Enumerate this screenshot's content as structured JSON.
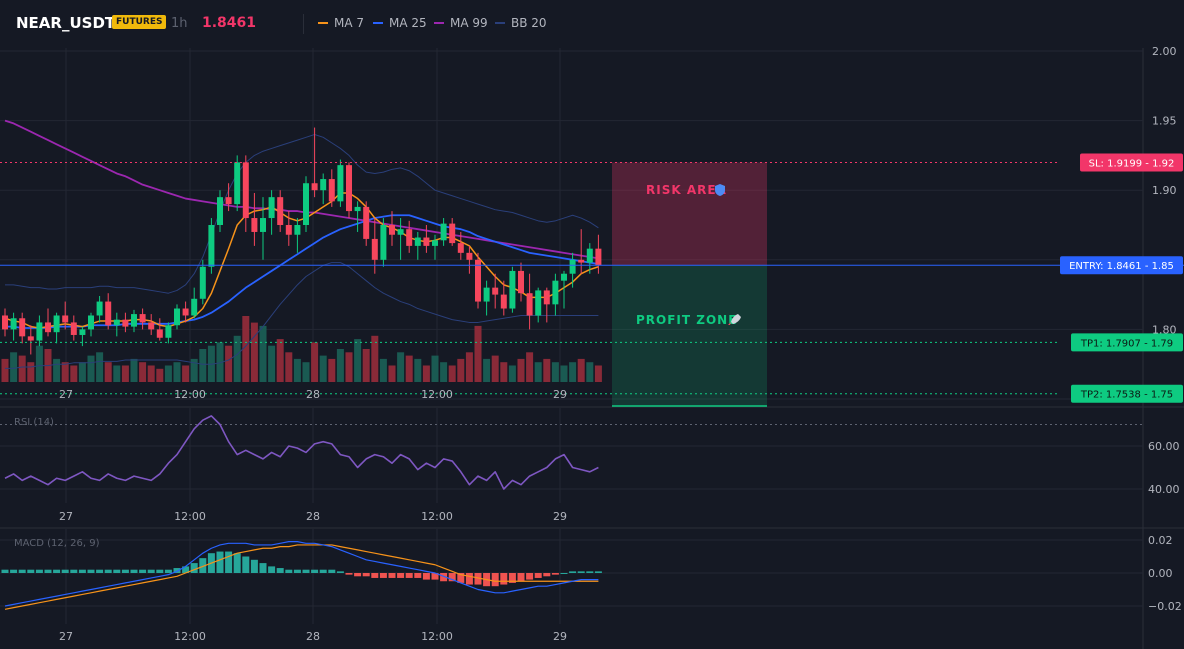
{
  "header": {
    "symbol": "NEAR_USDT",
    "badge": "FUTURES",
    "timeframe": "1h",
    "last_price": "1.8461",
    "legend": [
      {
        "label": "MA 7",
        "color": "#f7931a"
      },
      {
        "label": "MA 25",
        "color": "#2962ff"
      },
      {
        "label": "MA 99",
        "color": "#9c27b0"
      },
      {
        "label": "BB 20",
        "color": "#2a3f7a"
      }
    ]
  },
  "colors": {
    "up": "#0ecb81",
    "down": "#f6465d",
    "vol_up": "#1a5a52",
    "vol_down": "#8a2a38",
    "bg": "#151924",
    "grid": "#232733",
    "risk": "#f23669",
    "profit": "#0ecb81",
    "entry": "#2962ff"
  },
  "levels": {
    "sl": {
      "label": "SL: 1.9199 - 1.92",
      "value": 1.9199
    },
    "entry": {
      "label": "ENTRY: 1.8461 - 1.85",
      "value": 1.8461
    },
    "tp1": {
      "label": "TP1: 1.7907 - 1.79",
      "value": 1.7907
    },
    "tp2": {
      "label": "TP2: 1.7538 - 1.75",
      "value": 1.7538
    }
  },
  "zones": {
    "risk_label": "RISK AREA",
    "risk_icon": "shield-icon",
    "profit_label": "PROFIT ZONE",
    "profit_icon": "rocket-icon"
  },
  "chart_data": [
    {
      "type": "candlestick",
      "title": "NEAR_USDT 1h",
      "ylim": [
        1.75,
        2.0
      ],
      "y_ticks": [
        "2.00",
        "1.95",
        "1.90",
        "1.80"
      ],
      "x_ticks": [
        "27",
        "12:00",
        "28",
        "12:00",
        "29"
      ],
      "candles": [
        [
          1.81,
          1.815,
          1.795,
          1.8
        ],
        [
          1.8,
          1.812,
          1.792,
          1.808
        ],
        [
          1.808,
          1.812,
          1.79,
          1.795
        ],
        [
          1.795,
          1.803,
          1.782,
          1.792
        ],
        [
          1.792,
          1.81,
          1.788,
          1.805
        ],
        [
          1.805,
          1.815,
          1.795,
          1.798
        ],
        [
          1.798,
          1.812,
          1.79,
          1.81
        ],
        [
          1.81,
          1.82,
          1.8,
          1.805
        ],
        [
          1.805,
          1.81,
          1.792,
          1.796
        ],
        [
          1.796,
          1.802,
          1.788,
          1.8
        ],
        [
          1.8,
          1.812,
          1.795,
          1.81
        ],
        [
          1.81,
          1.824,
          1.805,
          1.82
        ],
        [
          1.82,
          1.826,
          1.8,
          1.803
        ],
        [
          1.803,
          1.812,
          1.795,
          1.807
        ],
        [
          1.807,
          1.812,
          1.798,
          1.802
        ],
        [
          1.802,
          1.814,
          1.798,
          1.811
        ],
        [
          1.811,
          1.815,
          1.8,
          1.805
        ],
        [
          1.805,
          1.811,
          1.796,
          1.8
        ],
        [
          1.8,
          1.808,
          1.792,
          1.794
        ],
        [
          1.794,
          1.805,
          1.79,
          1.803
        ],
        [
          1.803,
          1.818,
          1.8,
          1.815
        ],
        [
          1.815,
          1.82,
          1.805,
          1.81
        ],
        [
          1.81,
          1.83,
          1.808,
          1.822
        ],
        [
          1.822,
          1.85,
          1.818,
          1.845
        ],
        [
          1.845,
          1.88,
          1.84,
          1.875
        ],
        [
          1.875,
          1.9,
          1.87,
          1.895
        ],
        [
          1.895,
          1.905,
          1.885,
          1.89
        ],
        [
          1.89,
          1.925,
          1.885,
          1.92
        ],
        [
          1.92,
          1.925,
          1.87,
          1.88
        ],
        [
          1.88,
          1.898,
          1.86,
          1.87
        ],
        [
          1.87,
          1.895,
          1.85,
          1.88
        ],
        [
          1.88,
          1.9,
          1.868,
          1.895
        ],
        [
          1.895,
          1.9,
          1.87,
          1.875
        ],
        [
          1.875,
          1.885,
          1.86,
          1.868
        ],
        [
          1.868,
          1.88,
          1.855,
          1.875
        ],
        [
          1.875,
          1.91,
          1.87,
          1.905
        ],
        [
          1.905,
          1.945,
          1.895,
          1.9
        ],
        [
          1.9,
          1.912,
          1.89,
          1.908
        ],
        [
          1.908,
          1.915,
          1.888,
          1.892
        ],
        [
          1.892,
          1.922,
          1.888,
          1.918
        ],
        [
          1.918,
          1.92,
          1.88,
          1.885
        ],
        [
          1.885,
          1.892,
          1.87,
          1.888
        ],
        [
          1.888,
          1.892,
          1.86,
          1.865
        ],
        [
          1.865,
          1.88,
          1.84,
          1.85
        ],
        [
          1.85,
          1.88,
          1.845,
          1.875
        ],
        [
          1.875,
          1.885,
          1.86,
          1.868
        ],
        [
          1.868,
          1.88,
          1.85,
          1.872
        ],
        [
          1.872,
          1.878,
          1.855,
          1.86
        ],
        [
          1.86,
          1.87,
          1.85,
          1.866
        ],
        [
          1.866,
          1.875,
          1.855,
          1.86
        ],
        [
          1.86,
          1.868,
          1.85,
          1.864
        ],
        [
          1.864,
          1.88,
          1.86,
          1.876
        ],
        [
          1.876,
          1.88,
          1.86,
          1.862
        ],
        [
          1.862,
          1.87,
          1.85,
          1.855
        ],
        [
          1.855,
          1.86,
          1.84,
          1.85
        ],
        [
          1.85,
          1.855,
          1.815,
          1.82
        ],
        [
          1.82,
          1.835,
          1.81,
          1.83
        ],
        [
          1.83,
          1.84,
          1.815,
          1.825
        ],
        [
          1.825,
          1.835,
          1.81,
          1.815
        ],
        [
          1.815,
          1.845,
          1.812,
          1.842
        ],
        [
          1.842,
          1.848,
          1.82,
          1.826
        ],
        [
          1.826,
          1.84,
          1.8,
          1.81
        ],
        [
          1.81,
          1.83,
          1.805,
          1.828
        ],
        [
          1.828,
          1.83,
          1.805,
          1.818
        ],
        [
          1.818,
          1.84,
          1.81,
          1.835
        ],
        [
          1.835,
          1.842,
          1.815,
          1.84
        ],
        [
          1.84,
          1.855,
          1.83,
          1.85
        ],
        [
          1.85,
          1.872,
          1.84,
          1.848
        ],
        [
          1.848,
          1.862,
          1.84,
          1.858
        ],
        [
          1.858,
          1.868,
          1.84,
          1.846
        ]
      ],
      "ma7": [
        1.808,
        1.806,
        1.805,
        1.802,
        1.801,
        1.802,
        1.803,
        1.804,
        1.803,
        1.802,
        1.804,
        1.806,
        1.806,
        1.806,
        1.806,
        1.807,
        1.807,
        1.806,
        1.803,
        1.802,
        1.804,
        1.806,
        1.809,
        1.815,
        1.826,
        1.842,
        1.858,
        1.875,
        1.882,
        1.885,
        1.886,
        1.888,
        1.884,
        1.88,
        1.878,
        1.88,
        1.884,
        1.888,
        1.892,
        1.898,
        1.898,
        1.894,
        1.888,
        1.88,
        1.875,
        1.873,
        1.87,
        1.866,
        1.864,
        1.863,
        1.864,
        1.866,
        1.866,
        1.863,
        1.86,
        1.852,
        1.845,
        1.838,
        1.832,
        1.83,
        1.827,
        1.823,
        1.823,
        1.823,
        1.826,
        1.83,
        1.834,
        1.84,
        1.843,
        1.845
      ],
      "ma25": [
        1.802,
        1.802,
        1.801,
        1.801,
        1.801,
        1.801,
        1.802,
        1.802,
        1.802,
        1.802,
        1.803,
        1.803,
        1.803,
        1.803,
        1.804,
        1.804,
        1.804,
        1.804,
        1.804,
        1.804,
        1.805,
        1.806,
        1.807,
        1.809,
        1.812,
        1.816,
        1.82,
        1.825,
        1.83,
        1.834,
        1.838,
        1.842,
        1.846,
        1.85,
        1.854,
        1.858,
        1.862,
        1.866,
        1.869,
        1.872,
        1.874,
        1.876,
        1.878,
        1.88,
        1.881,
        1.882,
        1.882,
        1.882,
        1.88,
        1.878,
        1.876,
        1.874,
        1.873,
        1.872,
        1.87,
        1.867,
        1.865,
        1.863,
        1.861,
        1.859,
        1.857,
        1.855,
        1.854,
        1.853,
        1.852,
        1.851,
        1.85,
        1.849,
        1.848,
        1.847
      ],
      "ma99": [
        1.95,
        1.948,
        1.945,
        1.942,
        1.939,
        1.936,
        1.933,
        1.93,
        1.927,
        1.924,
        1.921,
        1.918,
        1.915,
        1.912,
        1.91,
        1.907,
        1.904,
        1.902,
        1.9,
        1.898,
        1.896,
        1.894,
        1.893,
        1.892,
        1.891,
        1.89,
        1.889,
        1.888,
        1.888,
        1.887,
        1.887,
        1.886,
        1.886,
        1.885,
        1.885,
        1.884,
        1.884,
        1.883,
        1.882,
        1.881,
        1.88,
        1.879,
        1.878,
        1.877,
        1.876,
        1.875,
        1.874,
        1.873,
        1.872,
        1.871,
        1.87,
        1.869,
        1.868,
        1.867,
        1.866,
        1.865,
        1.864,
        1.863,
        1.862,
        1.861,
        1.86,
        1.859,
        1.858,
        1.857,
        1.856,
        1.855,
        1.854,
        1.853,
        1.852,
        1.851
      ],
      "bb_upper": [
        1.832,
        1.832,
        1.831,
        1.83,
        1.83,
        1.829,
        1.829,
        1.83,
        1.83,
        1.83,
        1.83,
        1.831,
        1.831,
        1.83,
        1.83,
        1.83,
        1.829,
        1.828,
        1.827,
        1.826,
        1.828,
        1.832,
        1.84,
        1.852,
        1.868,
        1.885,
        1.9,
        1.912,
        1.92,
        1.925,
        1.928,
        1.93,
        1.932,
        1.934,
        1.936,
        1.938,
        1.94,
        1.938,
        1.934,
        1.93,
        1.925,
        1.918,
        1.913,
        1.912,
        1.913,
        1.915,
        1.916,
        1.914,
        1.91,
        1.905,
        1.9,
        1.898,
        1.896,
        1.894,
        1.892,
        1.89,
        1.888,
        1.886,
        1.885,
        1.884,
        1.882,
        1.88,
        1.878,
        1.877,
        1.878,
        1.88,
        1.882,
        1.88,
        1.877,
        1.873
      ],
      "bb_lower": [
        1.772,
        1.772,
        1.773,
        1.773,
        1.774,
        1.774,
        1.775,
        1.775,
        1.776,
        1.776,
        1.776,
        1.777,
        1.777,
        1.777,
        1.778,
        1.778,
        1.778,
        1.778,
        1.778,
        1.778,
        1.778,
        1.777,
        1.776,
        1.775,
        1.775,
        1.776,
        1.778,
        1.782,
        1.788,
        1.795,
        1.802,
        1.81,
        1.818,
        1.825,
        1.832,
        1.838,
        1.842,
        1.846,
        1.848,
        1.848,
        1.845,
        1.84,
        1.835,
        1.83,
        1.826,
        1.823,
        1.82,
        1.818,
        1.815,
        1.813,
        1.811,
        1.809,
        1.807,
        1.806,
        1.805,
        1.805,
        1.806,
        1.807,
        1.808,
        1.809,
        1.81,
        1.81,
        1.81,
        1.81,
        1.81,
        1.81,
        1.81,
        1.81,
        1.81,
        1.81
      ],
      "volume_relative": [
        0.35,
        0.45,
        0.4,
        0.3,
        0.55,
        0.5,
        0.35,
        0.3,
        0.25,
        0.3,
        0.4,
        0.45,
        0.3,
        0.25,
        0.25,
        0.35,
        0.3,
        0.25,
        0.2,
        0.25,
        0.3,
        0.25,
        0.35,
        0.5,
        0.55,
        0.6,
        0.55,
        0.7,
        1.0,
        0.9,
        0.85,
        0.55,
        0.65,
        0.45,
        0.35,
        0.3,
        0.6,
        0.4,
        0.35,
        0.5,
        0.45,
        0.65,
        0.5,
        0.7,
        0.35,
        0.25,
        0.45,
        0.4,
        0.35,
        0.25,
        0.4,
        0.3,
        0.25,
        0.35,
        0.45,
        0.85,
        0.35,
        0.4,
        0.3,
        0.25,
        0.35,
        0.45,
        0.3,
        0.35,
        0.3,
        0.25,
        0.3,
        0.35,
        0.3,
        0.25
      ]
    },
    {
      "type": "line",
      "title": "RSI (14)",
      "ylim": [
        30,
        80
      ],
      "y_ticks": [
        "60.00",
        "40.00"
      ],
      "x_ticks": [
        "27",
        "12:00",
        "28",
        "12:00",
        "29"
      ],
      "values": [
        45,
        47,
        44,
        46,
        44,
        42,
        45,
        44,
        46,
        48,
        45,
        44,
        47,
        45,
        44,
        46,
        45,
        44,
        47,
        52,
        56,
        62,
        68,
        72,
        74,
        70,
        62,
        56,
        58,
        56,
        54,
        57,
        55,
        60,
        59,
        57,
        61,
        62,
        61,
        56,
        55,
        50,
        54,
        56,
        55,
        52,
        56,
        54,
        49,
        52,
        50,
        54,
        53,
        48,
        42,
        46,
        44,
        48,
        40,
        44,
        42,
        46,
        48,
        50,
        54,
        56,
        50,
        49,
        48,
        50
      ],
      "reference_lines": [
        70
      ]
    },
    {
      "type": "bar+line",
      "title": "MACD (12, 26, 9)",
      "ylim": [
        -0.03,
        0.03
      ],
      "y_ticks": [
        "0.02",
        "0.00",
        "−0.02"
      ],
      "x_ticks": [
        "27",
        "12:00",
        "28",
        "12:00",
        "29"
      ],
      "histogram": [
        0.002,
        0.002,
        0.002,
        0.002,
        0.002,
        0.002,
        0.002,
        0.002,
        0.002,
        0.002,
        0.002,
        0.002,
        0.002,
        0.002,
        0.002,
        0.002,
        0.002,
        0.002,
        0.002,
        0.002,
        0.003,
        0.004,
        0.006,
        0.009,
        0.012,
        0.013,
        0.013,
        0.012,
        0.01,
        0.008,
        0.006,
        0.004,
        0.003,
        0.002,
        0.002,
        0.002,
        0.002,
        0.002,
        0.002,
        0.001,
        -0.001,
        -0.002,
        -0.002,
        -0.003,
        -0.003,
        -0.003,
        -0.003,
        -0.003,
        -0.003,
        -0.004,
        -0.004,
        -0.005,
        -0.005,
        -0.006,
        -0.007,
        -0.007,
        -0.008,
        -0.008,
        -0.007,
        -0.006,
        -0.005,
        -0.004,
        -0.003,
        -0.002,
        -0.001,
        0.0,
        0.001,
        0.001,
        0.001,
        0.001
      ],
      "macd": [
        -0.02,
        -0.019,
        -0.018,
        -0.017,
        -0.016,
        -0.015,
        -0.014,
        -0.013,
        -0.012,
        -0.011,
        -0.01,
        -0.009,
        -0.008,
        -0.007,
        -0.006,
        -0.005,
        -0.004,
        -0.003,
        -0.002,
        -0.001,
        0.001,
        0.004,
        0.008,
        0.012,
        0.015,
        0.017,
        0.018,
        0.018,
        0.018,
        0.017,
        0.017,
        0.017,
        0.018,
        0.019,
        0.019,
        0.018,
        0.018,
        0.017,
        0.016,
        0.014,
        0.012,
        0.01,
        0.008,
        0.007,
        0.006,
        0.005,
        0.004,
        0.003,
        0.002,
        0.001,
        0.0,
        -0.002,
        -0.004,
        -0.006,
        -0.008,
        -0.01,
        -0.011,
        -0.012,
        -0.012,
        -0.011,
        -0.01,
        -0.009,
        -0.008,
        -0.008,
        -0.007,
        -0.006,
        -0.005,
        -0.004,
        -0.004,
        -0.004
      ],
      "signal": [
        -0.022,
        -0.021,
        -0.02,
        -0.019,
        -0.018,
        -0.017,
        -0.016,
        -0.015,
        -0.014,
        -0.013,
        -0.012,
        -0.011,
        -0.01,
        -0.009,
        -0.008,
        -0.007,
        -0.006,
        -0.005,
        -0.004,
        -0.003,
        -0.002,
        0.0,
        0.002,
        0.004,
        0.006,
        0.008,
        0.01,
        0.012,
        0.013,
        0.014,
        0.015,
        0.015,
        0.016,
        0.016,
        0.017,
        0.017,
        0.017,
        0.017,
        0.017,
        0.016,
        0.015,
        0.014,
        0.013,
        0.012,
        0.011,
        0.01,
        0.009,
        0.008,
        0.007,
        0.006,
        0.005,
        0.003,
        0.001,
        -0.001,
        -0.002,
        -0.003,
        -0.004,
        -0.005,
        -0.005,
        -0.005,
        -0.005,
        -0.005,
        -0.005,
        -0.005,
        -0.005,
        -0.005,
        -0.005,
        -0.005,
        -0.005,
        -0.005
      ]
    }
  ]
}
